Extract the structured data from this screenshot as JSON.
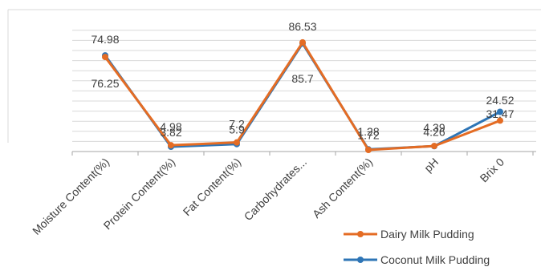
{
  "chart_data": {
    "type": "line",
    "categories": [
      "Moisture Content(%)",
      "Protein Content(%)",
      "Fat Content(%)",
      "Carbohydrates...",
      "Ash Content(%)",
      "pH",
      "Brix 0"
    ],
    "series": [
      {
        "name": "Dairy Milk Pudding",
        "color": "#E46C24",
        "values": [
          74.98,
          4.98,
          7.2,
          86.53,
          1.28,
          4.39,
          24.52
        ],
        "labels": [
          "74.98",
          "4.98",
          "7.2",
          "86.53",
          "1.28",
          "4.39",
          "24.52"
        ]
      },
      {
        "name": "Coconut Milk Pudding",
        "color": "#2E75B6",
        "values": [
          76.25,
          3.82,
          5.9,
          85.7,
          1.72,
          4.26,
          31.47
        ],
        "labels": [
          "76.25",
          "3.82",
          "5.9",
          "85.7",
          "1.72",
          "4.26",
          "31.47"
        ]
      }
    ],
    "title": "",
    "xlabel": "",
    "ylabel": "",
    "grid": true,
    "legend_position": "bottom-right",
    "gridline_color": "#D9D9D9",
    "axis_color": "#A6A6A6",
    "text_color": "#404040"
  }
}
